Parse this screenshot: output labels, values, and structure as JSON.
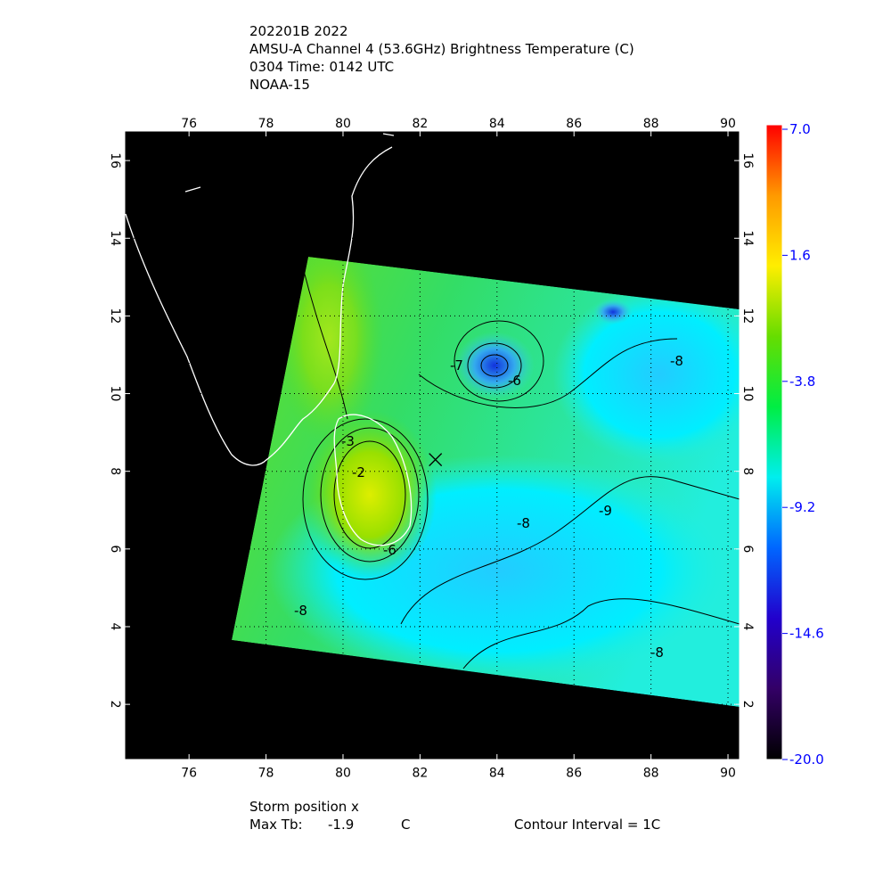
{
  "chart_data": {
    "type": "map",
    "title_lines": [
      "202201B 2022",
      "AMSU-A Channel 4 (53.6GHz) Brightness Temperature (C)",
      "0304 Time: 0142 UTC",
      "NOAA-15"
    ],
    "xlim": [
      74.33,
      90.3
    ],
    "xticks": [
      76,
      78,
      80,
      82,
      84,
      86,
      88,
      90
    ],
    "ylim": [
      0.58,
      16.76
    ],
    "yticks": [
      2,
      4,
      6,
      8,
      10,
      12,
      14,
      16
    ],
    "grid": true,
    "storm_position": {
      "label": "Storm position x",
      "lon": 82.4,
      "lat": 8.3
    },
    "contour_labels": [
      -8,
      -6,
      -2,
      -3,
      -9,
      -8,
      -6,
      -8,
      -8,
      -7
    ],
    "footer": {
      "max_tb_label": "Max Tb:",
      "max_tb": "-1.9",
      "unit": "C",
      "contour_interval": "Contour Interval = 1C"
    },
    "colorbar": {
      "lim": [
        -20,
        7
      ],
      "ticks": [
        {
          "value": 7,
          "label": "7.0"
        },
        1.6,
        -3.8,
        -9.2,
        -14.6,
        {
          "value": -20,
          "label": "-20.0"
        }
      ],
      "colors": [
        "#ff0000",
        "#ff9900",
        "#ffee00",
        "#66dd00",
        "#00ee44",
        "#00eeee",
        "#0066ff",
        "#2200cc",
        "#330066",
        "#000000"
      ]
    }
  }
}
